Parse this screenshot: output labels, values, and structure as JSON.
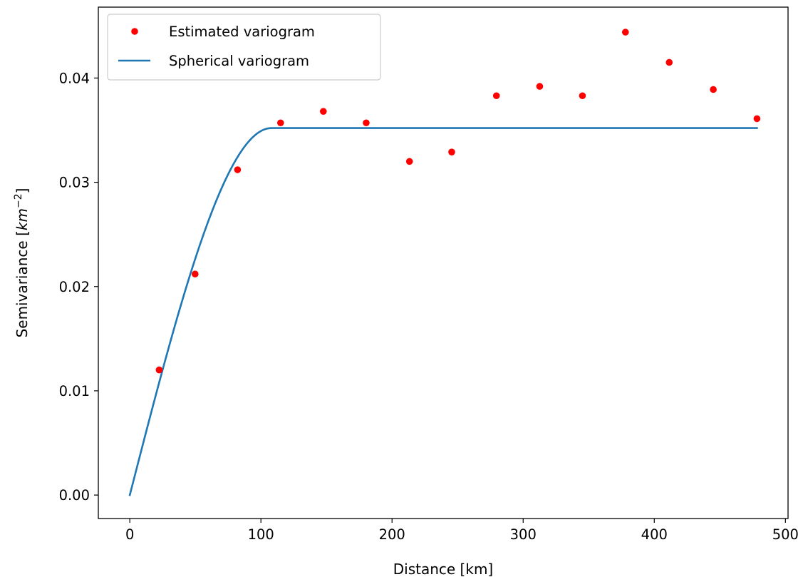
{
  "chart_data": {
    "type": "scatter",
    "title": "",
    "xlabel": "Distance [km]",
    "ylabel_main": "Semivariance [",
    "ylabel_unit": "km",
    "ylabel_exponent": "−2",
    "ylabel_close": "]",
    "xlim": [
      -24,
      502
    ],
    "ylim": [
      -0.00225,
      0.0468
    ],
    "x_ticks": [
      0,
      100,
      200,
      300,
      400,
      500
    ],
    "x_tick_labels": [
      "0",
      "100",
      "200",
      "300",
      "400",
      "500"
    ],
    "y_ticks": [
      0.0,
      0.01,
      0.02,
      0.03,
      0.04
    ],
    "y_tick_labels": [
      "0.00",
      "0.01",
      "0.02",
      "0.03",
      "0.04"
    ],
    "grid": false,
    "legend_position": "top-left",
    "series": [
      {
        "name": "Estimated variogram",
        "kind": "scatter",
        "color": "#ff0000",
        "x": [
          22.4,
          49.8,
          82.2,
          115.0,
          147.6,
          180.3,
          213.3,
          245.5,
          279.6,
          312.6,
          345.2,
          378.0,
          411.4,
          445.0,
          478.3
        ],
        "y": [
          0.012,
          0.0212,
          0.0312,
          0.0357,
          0.0368,
          0.0357,
          0.032,
          0.0329,
          0.0383,
          0.0392,
          0.0383,
          0.0444,
          0.0415,
          0.0389,
          0.0361
        ]
      },
      {
        "name": "Spherical variogram",
        "kind": "line",
        "color": "#1f77b4",
        "model": "spherical",
        "nugget": 0.0,
        "sill": 0.0352,
        "range": 108,
        "x_start": 0,
        "x_end": 478.3
      }
    ]
  }
}
